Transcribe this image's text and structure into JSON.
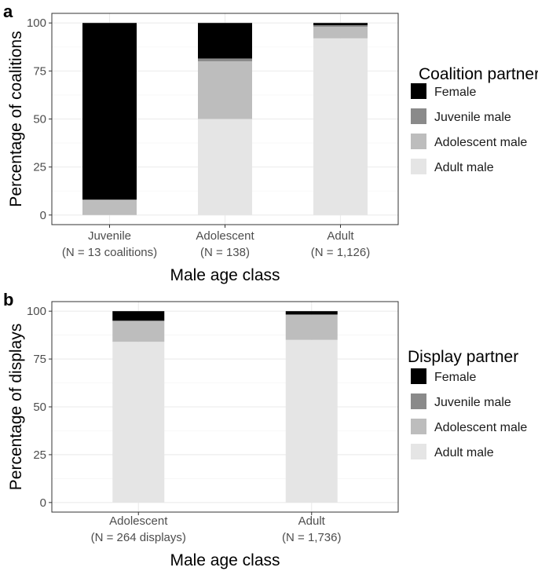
{
  "chart_data": [
    {
      "type": "bar",
      "stacked": true,
      "panel_label": "a",
      "categories": [
        "Juvenile",
        "Adolescent",
        "Adult"
      ],
      "category_sublabels": [
        "(N = 13 coalitions)",
        "(N = 138)",
        "(N = 1,126)"
      ],
      "xlabel": "Male age class",
      "ylabel": "Percentage of coalitions",
      "ylim": [
        0,
        100
      ],
      "yticks": [
        "0",
        "25",
        "50",
        "75",
        "100"
      ],
      "grid": true,
      "legend_title": "Coalition partner",
      "legend_position": "right",
      "series": [
        {
          "name": "Adult male",
          "color": "#e5e5e5",
          "values": [
            0,
            50,
            92
          ]
        },
        {
          "name": "Adolescent male",
          "color": "#bdbdbd",
          "values": [
            8,
            30,
            6
          ]
        },
        {
          "name": "Juvenile male",
          "color": "#8a8a8a",
          "values": [
            0,
            1.5,
            0.8
          ]
        },
        {
          "name": "Female",
          "color": "#000000",
          "values": [
            92,
            18.5,
            1.2
          ]
        }
      ],
      "legend_order": [
        "Female",
        "Juvenile male",
        "Adolescent male",
        "Adult male"
      ]
    },
    {
      "type": "bar",
      "stacked": true,
      "panel_label": "b",
      "categories": [
        "Adolescent",
        "Adult"
      ],
      "category_sublabels": [
        "(N = 264 displays)",
        "(N = 1,736)"
      ],
      "xlabel": "Male age class",
      "ylabel": "Percentage of displays",
      "ylim": [
        0,
        100
      ],
      "yticks": [
        "0",
        "25",
        "50",
        "75",
        "100"
      ],
      "grid": true,
      "legend_title": "Display partner",
      "legend_position": "right",
      "series": [
        {
          "name": "Adult male",
          "color": "#e5e5e5",
          "values": [
            84,
            85
          ]
        },
        {
          "name": "Adolescent male",
          "color": "#bdbdbd",
          "values": [
            11,
            13
          ]
        },
        {
          "name": "Juvenile male",
          "color": "#8a8a8a",
          "values": [
            0,
            0.3
          ]
        },
        {
          "name": "Female",
          "color": "#000000",
          "values": [
            5,
            1.7
          ]
        }
      ],
      "legend_order": [
        "Female",
        "Juvenile male",
        "Adolescent male",
        "Adult male"
      ]
    }
  ]
}
